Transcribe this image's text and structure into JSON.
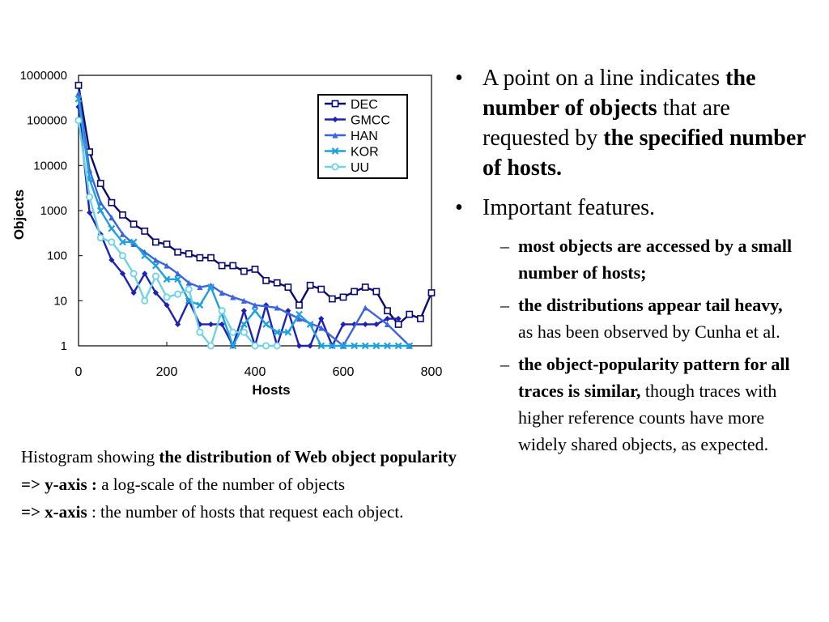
{
  "chart_data": {
    "type": "line",
    "title": "",
    "xlabel": "Hosts",
    "ylabel": "Objects",
    "xlim": [
      0,
      800
    ],
    "ylim": [
      1,
      1000000
    ],
    "yscale": "log",
    "xticks": [
      "0",
      "200",
      "400",
      "600",
      "800"
    ],
    "yticks": [
      "1",
      "10",
      "100",
      "1000",
      "10000",
      "100000",
      "1000000"
    ],
    "grid": false,
    "legend_position": "top-right",
    "series": [
      {
        "name": "DEC",
        "color": "#0a0a6e",
        "marker": "square",
        "x": [
          0,
          25,
          50,
          75,
          100,
          125,
          150,
          175,
          200,
          225,
          250,
          275,
          300,
          325,
          350,
          375,
          400,
          425,
          450,
          475,
          500,
          525,
          550,
          575,
          600,
          625,
          650,
          675,
          700,
          725,
          750,
          775,
          800
        ],
        "y": [
          600000,
          20000,
          4000,
          1500,
          800,
          500,
          350,
          200,
          180,
          120,
          110,
          90,
          90,
          60,
          60,
          45,
          50,
          28,
          25,
          20,
          8,
          22,
          18,
          11,
          12,
          16,
          20,
          16,
          6,
          3,
          5,
          4,
          15
        ]
      },
      {
        "name": "GMCC",
        "color": "#1e22b4",
        "marker": "diamond",
        "x": [
          0,
          25,
          50,
          75,
          100,
          125,
          150,
          175,
          200,
          225,
          250,
          275,
          300,
          325,
          350,
          375,
          400,
          425,
          450,
          475,
          500,
          525,
          550,
          575,
          600,
          625,
          650,
          675,
          700,
          725
        ],
        "y": [
          200000,
          900,
          300,
          80,
          40,
          15,
          40,
          15,
          8,
          3,
          10,
          3,
          3,
          3,
          1,
          6,
          1,
          8,
          1,
          6,
          1,
          1,
          4,
          1,
          3,
          3,
          3,
          3,
          4,
          4
        ]
      },
      {
        "name": "HAN",
        "color": "#3c64dc",
        "marker": "triangle",
        "x": [
          0,
          25,
          50,
          75,
          100,
          125,
          150,
          175,
          200,
          225,
          250,
          275,
          300,
          325,
          350,
          375,
          400,
          450,
          500,
          550,
          600,
          650,
          700,
          750
        ],
        "y": [
          400000,
          8000,
          1500,
          700,
          300,
          180,
          120,
          80,
          60,
          40,
          25,
          20,
          22,
          15,
          12,
          10,
          8,
          7,
          4,
          2.5,
          1,
          7,
          3,
          1
        ]
      },
      {
        "name": "KOR",
        "color": "#1ea0dc",
        "marker": "x",
        "x": [
          0,
          25,
          50,
          75,
          100,
          125,
          150,
          175,
          200,
          225,
          250,
          275,
          300,
          325,
          350,
          375,
          400,
          425,
          450,
          475,
          500,
          525,
          550,
          575,
          600,
          625,
          650,
          675,
          700,
          725,
          750
        ],
        "y": [
          300000,
          5000,
          1000,
          400,
          200,
          200,
          100,
          60,
          30,
          30,
          10,
          8,
          20,
          5,
          1,
          3,
          6,
          3,
          2,
          2,
          5,
          3,
          1,
          1,
          1,
          1,
          1,
          1,
          1,
          1,
          1
        ]
      },
      {
        "name": "UU",
        "color": "#6ed2e6",
        "marker": "circle",
        "x": [
          0,
          25,
          50,
          75,
          100,
          125,
          150,
          175,
          200,
          225,
          250,
          275,
          300,
          325,
          350,
          375,
          400,
          425,
          450
        ],
        "y": [
          100000,
          2000,
          250,
          200,
          100,
          40,
          10,
          35,
          12,
          14,
          18,
          2,
          1,
          6,
          2,
          2,
          1,
          1,
          1
        ]
      }
    ]
  },
  "caption": {
    "text1": "Histogram showing ",
    "bold1": "the distribution of Web object popularity",
    "y_label": "=> y-axis :",
    "y_text": " a log-scale of the number of objects",
    "x_label": "=> x-axis",
    "x_text": " : the number of hosts that request each object."
  },
  "bullets": {
    "b1_pre": "A point on a line indicates ",
    "b1_bold1": "the number of objects",
    "b1_mid": " that are requested by ",
    "b1_bold2": "the specified number of hosts.",
    "b2": "Important features.",
    "s1_bold": "most objects are accessed by a small number of hosts;",
    "s2_bold": "the distributions appear tail heavy,",
    "s2_text": " as has been observed by Cunha et al.",
    "s3_bold": "the object-popularity pattern for all traces is similar,",
    "s3_text": " though traces with higher reference counts have more widely shared objects, as expected.",
    "bullet_symbol": "•",
    "dash_symbol": "–"
  }
}
